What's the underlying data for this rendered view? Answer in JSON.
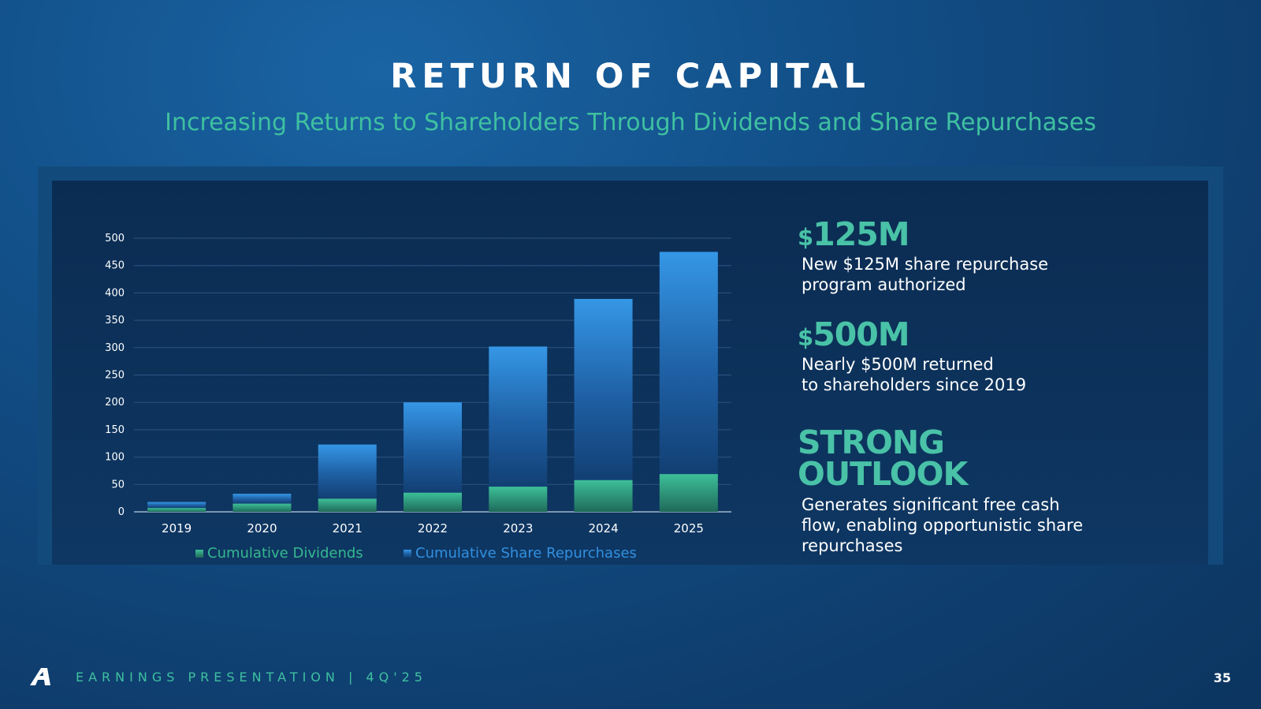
{
  "title": "RETURN OF CAPITAL",
  "subtitle": "Increasing Returns to Shareholders Through Dividends and Share Repurchases",
  "stats": [
    {
      "currency": "$",
      "value": "125M",
      "desc": "New $125M share repurchase\nprogram authorized"
    },
    {
      "currency": "$",
      "value": "500M",
      "desc": "Nearly $500M returned\nto shareholders since 2019"
    },
    {
      "currency": "",
      "value": "STRONG\nOUTLOOK",
      "desc": "Generates significant free cash\nflow, enabling opportunistic share\nrepurchases"
    }
  ],
  "footer": {
    "label": "EARNINGS PRESENTATION   |   4Q'25",
    "page": "35"
  },
  "colors": {
    "dividends": "#36b890",
    "repurchases": "#3290e0",
    "accent": "#3fc0a0"
  },
  "chart_data": {
    "type": "bar",
    "stacked": true,
    "categories": [
      "2019",
      "2020",
      "2021",
      "2022",
      "2023",
      "2024",
      "2025"
    ],
    "series": [
      {
        "name": "Cumulative Dividends",
        "values": [
          7,
          15,
          24,
          35,
          46,
          58,
          69
        ]
      },
      {
        "name": "Cumulative Share Repurchases",
        "values": [
          11,
          18,
          99,
          165,
          256,
          331,
          406
        ]
      }
    ],
    "ylim": [
      0,
      500
    ],
    "yticks": [
      0,
      50,
      100,
      150,
      200,
      250,
      300,
      350,
      400,
      450,
      500
    ],
    "grid": true,
    "legend": "bottom",
    "title": "",
    "xlabel": "",
    "ylabel": ""
  }
}
